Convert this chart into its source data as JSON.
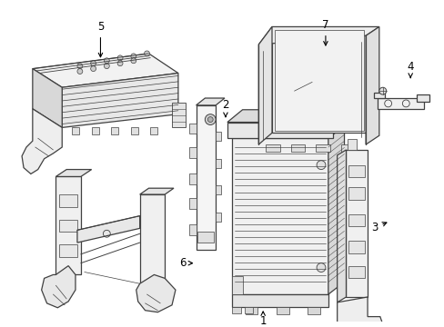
{
  "bg_color": "#ffffff",
  "line_color": "#404040",
  "figsize": [
    4.89,
    3.6
  ],
  "dpi": 100
}
